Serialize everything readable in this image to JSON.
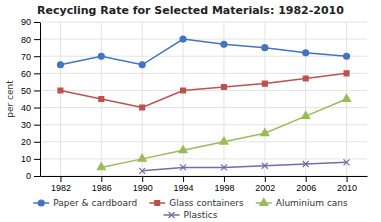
{
  "chart_data": {
    "type": "line",
    "title": "Recycling Rate for Selected Materials: 1982-2010",
    "y_label": "per cent",
    "x": [
      1982,
      1986,
      1990,
      1994,
      1998,
      2002,
      2006,
      2010
    ],
    "series": [
      {
        "name": "Paper & cardboard",
        "color": "#4472C4",
        "marker": "circle",
        "values": [
          65,
          70,
          65,
          80,
          77,
          75,
          72,
          70
        ]
      },
      {
        "name": "Glass containers",
        "color": "#C0504D",
        "marker": "square",
        "values": [
          50,
          45,
          40,
          50,
          52,
          54,
          57,
          60
        ]
      },
      {
        "name": "Aluminium cans",
        "color": "#9BBB59",
        "marker": "triangle",
        "values": [
          null,
          5,
          10,
          15,
          20,
          25,
          35,
          45
        ]
      },
      {
        "name": "Plastics",
        "color": "#7B68A6",
        "marker": "x",
        "values": [
          null,
          null,
          3,
          5,
          5,
          6,
          7,
          8
        ]
      }
    ],
    "xlim": [
      1980,
      2012
    ],
    "xticks": [
      1982,
      1986,
      1990,
      1994,
      1998,
      2002,
      2006,
      2010
    ],
    "ylim": [
      0,
      90
    ],
    "yticks": [
      0,
      10,
      20,
      30,
      40,
      50,
      60,
      70,
      80,
      90
    ],
    "grid": true,
    "legend": "bottom"
  }
}
